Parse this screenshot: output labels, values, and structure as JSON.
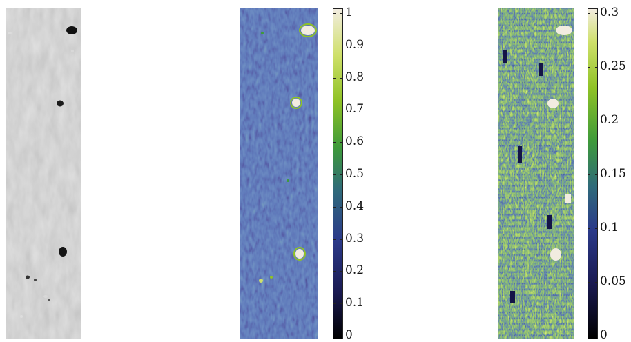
{
  "colors": {
    "background": "#ffffff",
    "gray_base": "#a9a9a9",
    "map_colormap": [
      "#000000",
      "#1a1a52",
      "#2b3a8a",
      "#2f6a7a",
      "#3e9a3a",
      "#8fc226",
      "#cfe06a",
      "#f2ece0"
    ]
  },
  "colorbars": [
    {
      "name": "colorbar-1",
      "range": [
        0,
        1
      ],
      "ticks": [
        "1",
        "0.9",
        "0.8",
        "0.7",
        "0.6",
        "0.5",
        "0.4",
        "0.3",
        "0.2",
        "0.1",
        "0"
      ]
    },
    {
      "name": "colorbar-2",
      "range": [
        0,
        0.3
      ],
      "ticks": [
        "0.3",
        "0.25",
        "0.2",
        "0.15",
        "0.1",
        "0.05",
        "0"
      ]
    }
  ],
  "panels": [
    {
      "name": "grayscale-image",
      "icon": "grayscale-texture"
    },
    {
      "name": "map-image-1",
      "icon": "heatmap-texture"
    },
    {
      "name": "map-image-2",
      "icon": "heatmap-texture"
    }
  ]
}
